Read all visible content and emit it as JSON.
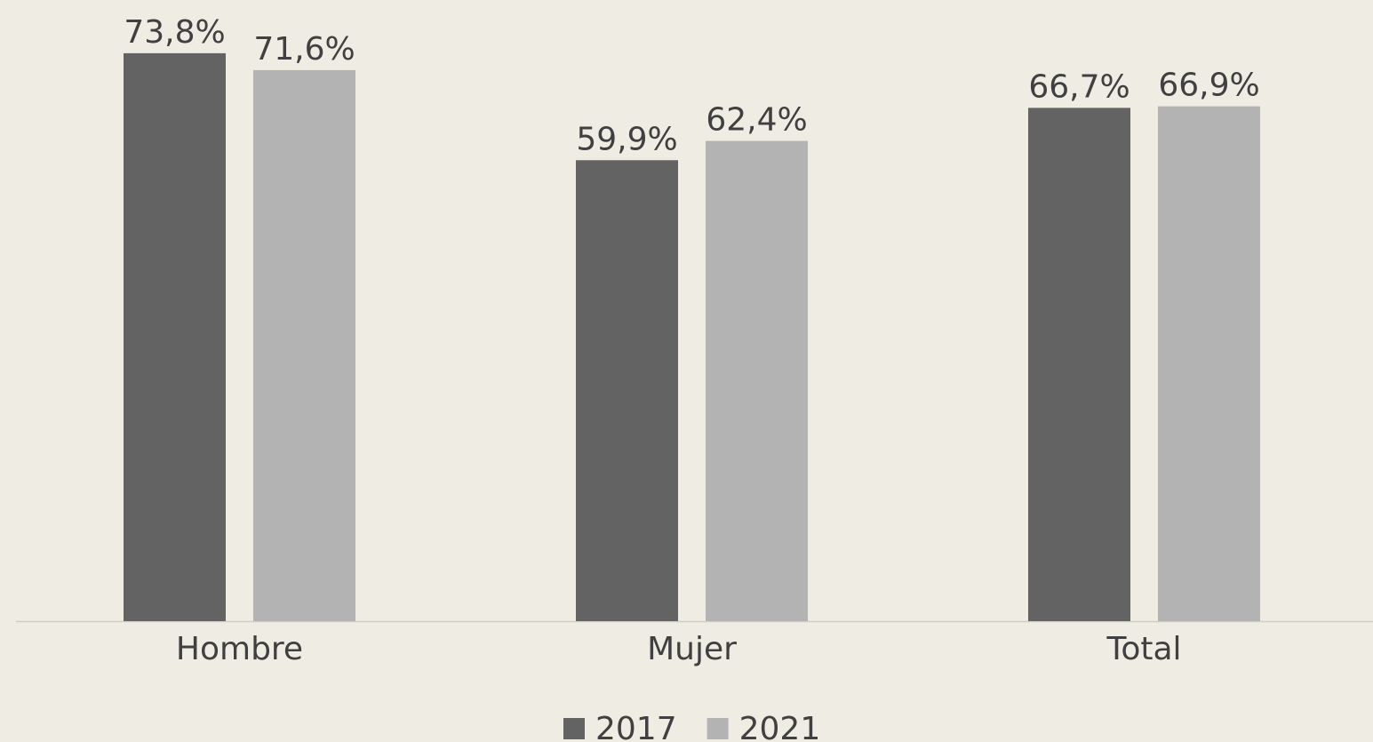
{
  "chart_data": {
    "type": "bar",
    "categories": [
      "Hombre",
      "Mujer",
      "Total"
    ],
    "series": [
      {
        "name": "2017",
        "color": "#636363",
        "values": [
          73.8,
          59.9,
          66.7
        ],
        "value_labels": [
          "73,8%",
          "59,9%",
          "66,7%"
        ]
      },
      {
        "name": "2021",
        "color": "#b3b3b3",
        "values": [
          71.6,
          62.4,
          66.9
        ],
        "value_labels": [
          "71,6%",
          "62,4%",
          "66,9%"
        ]
      }
    ],
    "legend": "bottom"
  }
}
